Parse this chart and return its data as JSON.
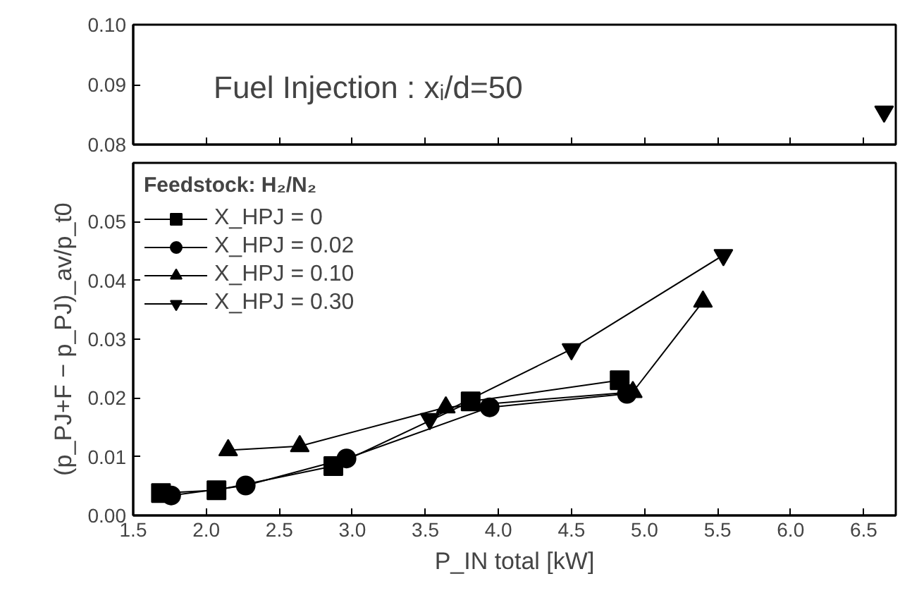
{
  "chart_data": [
    {
      "type": "line",
      "xlim": [
        1.5,
        6.72
      ],
      "ylim": [
        0.08,
        0.1
      ],
      "tick_labels": "y",
      "yticks": [
        {
          "value": 0.08,
          "label": "0.08"
        },
        {
          "value": 0.09,
          "label": "0.09"
        },
        {
          "value": 0.1,
          "label": "0.10"
        }
      ],
      "xticks": [
        1.5,
        2.0,
        2.5,
        3.0,
        3.5,
        4.0,
        4.5,
        5.0,
        5.5,
        6.0,
        6.5
      ],
      "annotations": [
        "Fuel Injection : xᵢ/d=50"
      ],
      "series": [
        {
          "color": "#000000",
          "marker": "triangle",
          "x": [
            6.64
          ],
          "values": [
            0.0855
          ]
        }
      ]
    },
    {
      "type": "line",
      "xlim": [
        1.5,
        6.72
      ],
      "ylim": [
        0,
        0.06
      ],
      "xlabel": "P_IN total [kW]",
      "ylabel": "(p_PJ+F − p_PJ)_av/p_t0",
      "legend": "top left",
      "legend_title": "Feedstock: H₂/N₂",
      "xticks": [
        {
          "value": 1.5,
          "label": "1.5"
        },
        {
          "value": 2.0,
          "label": "2.0"
        },
        {
          "value": 2.5,
          "label": "2.5"
        },
        {
          "value": 3.0,
          "label": "3.0"
        },
        {
          "value": 3.5,
          "label": "3.5"
        },
        {
          "value": 4.0,
          "label": "4.0"
        },
        {
          "value": 4.5,
          "label": "4.5"
        },
        {
          "value": 5.0,
          "label": "5.0"
        },
        {
          "value": 5.5,
          "label": "5.5"
        },
        {
          "value": 6.0,
          "label": "6.0"
        },
        {
          "value": 6.5,
          "label": "6.5"
        }
      ],
      "yticks": [
        {
          "value": 0,
          "label": "0.00"
        },
        {
          "value": 0.01,
          "label": "0.01"
        },
        {
          "value": 0.02,
          "label": "0.02"
        },
        {
          "value": 0.03,
          "label": "0.03"
        },
        {
          "value": 0.04,
          "label": "0.04"
        },
        {
          "value": 0.05,
          "label": "0.05"
        }
      ],
      "series": [
        {
          "name": "X_HPJ = 0",
          "color": "#000000",
          "marker": "square",
          "x": [
            1.69,
            2.07,
            2.87,
            3.81,
            4.83
          ],
          "values": [
            0.0038,
            0.0043,
            0.0084,
            0.0194,
            0.023
          ]
        },
        {
          "name": "X_HPJ = 0.02",
          "color": "#000000",
          "marker": "circle",
          "x": [
            1.76,
            2.27,
            2.96,
            3.94,
            4.88
          ],
          "values": [
            0.0034,
            0.0051,
            0.0097,
            0.0184,
            0.0207
          ]
        },
        {
          "name": "X_HPJ = 0.10",
          "color": "#000000",
          "marker": "triangle",
          "x": [
            2.15,
            2.64,
            3.64,
            4.92,
            5.4
          ],
          "values": [
            0.0111,
            0.0118,
            0.0184,
            0.021,
            0.0364
          ]
        },
        {
          "name": "X_HPJ = 0.30",
          "color": "#000000",
          "marker": "triangle",
          "x": [
            3.53,
            4.5,
            5.54
          ],
          "values": [
            0.0164,
            0.0283,
            0.0443
          ]
        }
      ]
    }
  ]
}
